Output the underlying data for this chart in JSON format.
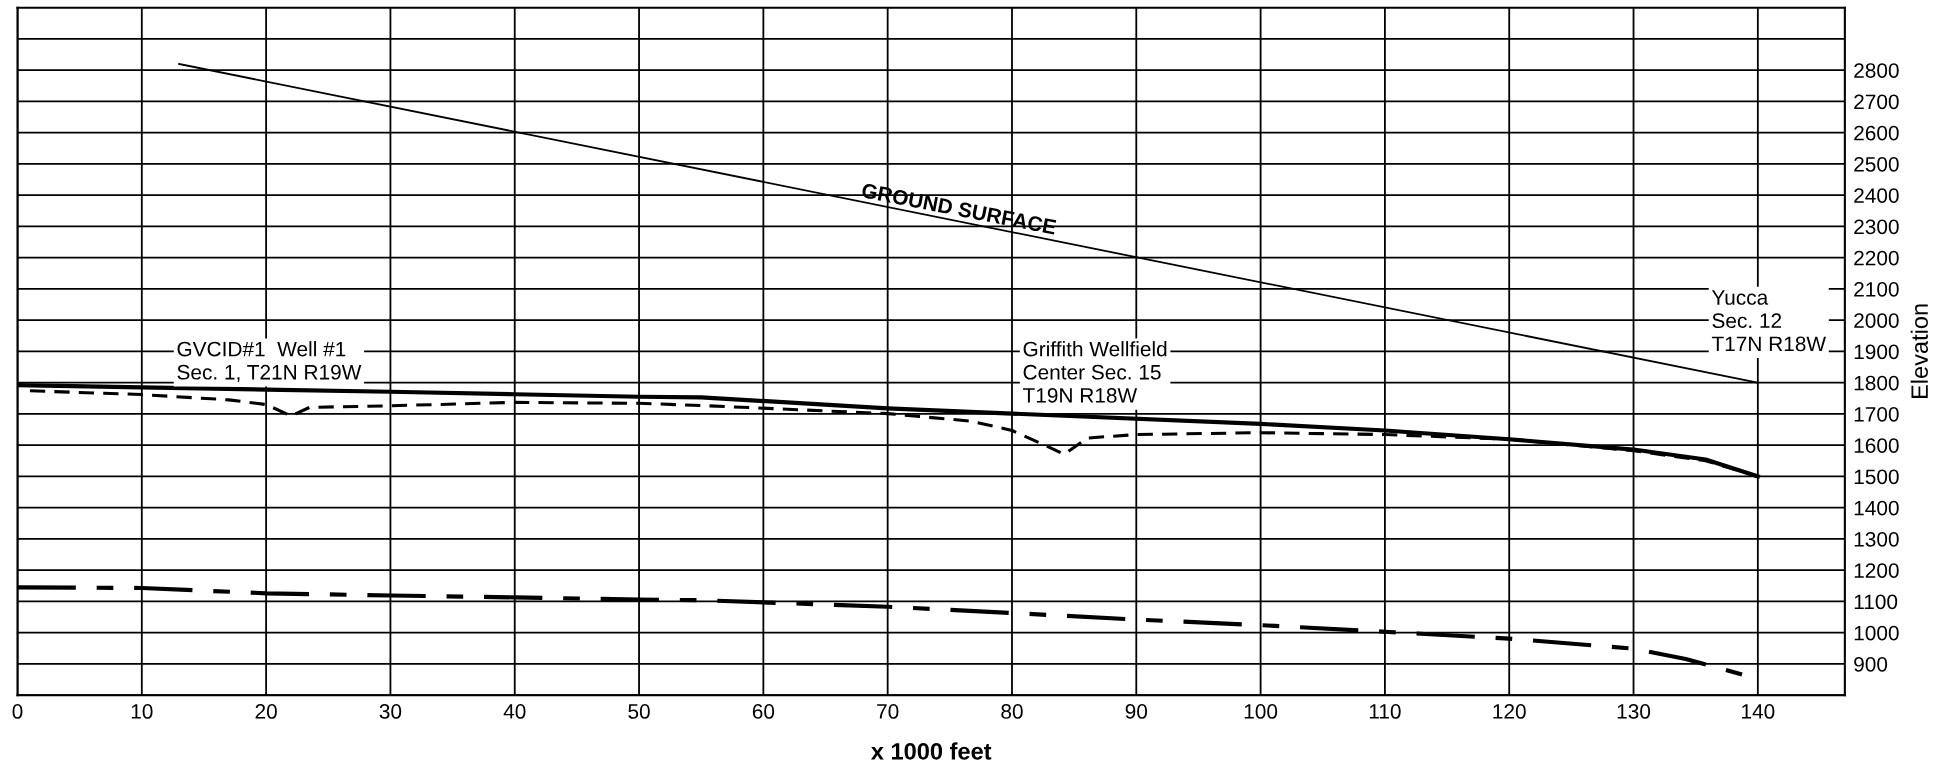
{
  "chart_data": {
    "type": "line",
    "xlabel": "x 1000 feet",
    "ylabel": "Elevation",
    "xlim": [
      0,
      147
    ],
    "xticks": [
      0,
      10,
      20,
      30,
      40,
      50,
      60,
      70,
      80,
      90,
      100,
      110,
      120,
      130,
      140
    ],
    "ylim": [
      800,
      3000
    ],
    "yticks": [
      {
        "value": 800,
        "label": null
      },
      900,
      1000,
      1100,
      1200,
      1300,
      1400,
      1500,
      1600,
      1700,
      1800,
      1900,
      2000,
      2100,
      2200,
      2300,
      2400,
      2500,
      2600,
      2700,
      2800,
      {
        "value": 2900,
        "label": null
      }
    ],
    "grid": true,
    "legend": false,
    "marker": "none",
    "series": [
      {
        "color": "#000000",
        "line_style": "solid",
        "x": [
          13,
          140
        ],
        "values": [
          2820,
          1800
        ]
      },
      {
        "color": "#000000",
        "line_style": "solid",
        "x": [
          0,
          10,
          20,
          30,
          40,
          50,
          55,
          70,
          80,
          100,
          110,
          120,
          130,
          135.8,
          140
        ],
        "values": [
          1792,
          1785,
          1778,
          1771,
          1763,
          1755,
          1753,
          1718,
          1701,
          1668,
          1647,
          1619,
          1586,
          1554,
          1500
        ]
      },
      {
        "color": "#000000",
        "line_style": "dashed",
        "x": [
          1,
          10,
          17,
          20,
          22,
          23.5,
          30,
          40,
          50,
          55,
          70,
          76.7,
          80,
          82.6,
          84.2,
          86.1,
          90,
          100,
          110,
          120,
          130,
          135.8,
          140
        ],
        "values": [
          1774,
          1762,
          1745,
          1730,
          1694,
          1721,
          1726,
          1737,
          1734,
          1727,
          1701,
          1677,
          1647,
          1601,
          1571,
          1623,
          1634,
          1640,
          1634,
          1619,
          1582,
          1550,
          1500
        ]
      },
      {
        "color": "#000000",
        "line_style": "dashdot",
        "x": [
          0,
          10,
          20,
          30,
          40,
          50,
          55,
          70,
          80,
          90,
          100,
          110,
          120,
          130,
          134.2,
          139
        ],
        "values": [
          1145,
          1143,
          1126,
          1119,
          1113,
          1106,
          1104,
          1083,
          1063,
          1042,
          1024,
          1003,
          981,
          949,
          916,
          863
        ]
      }
    ],
    "annotations": [
      "GROUND SURFACE",
      "GVCID#1  Well #1\nSec. 1, T21N R19W",
      "Griffith Wellfield\nCenter Sec. 15\nT19N R18W",
      "Yucca\nSec. 12\nT17N R18W"
    ]
  }
}
